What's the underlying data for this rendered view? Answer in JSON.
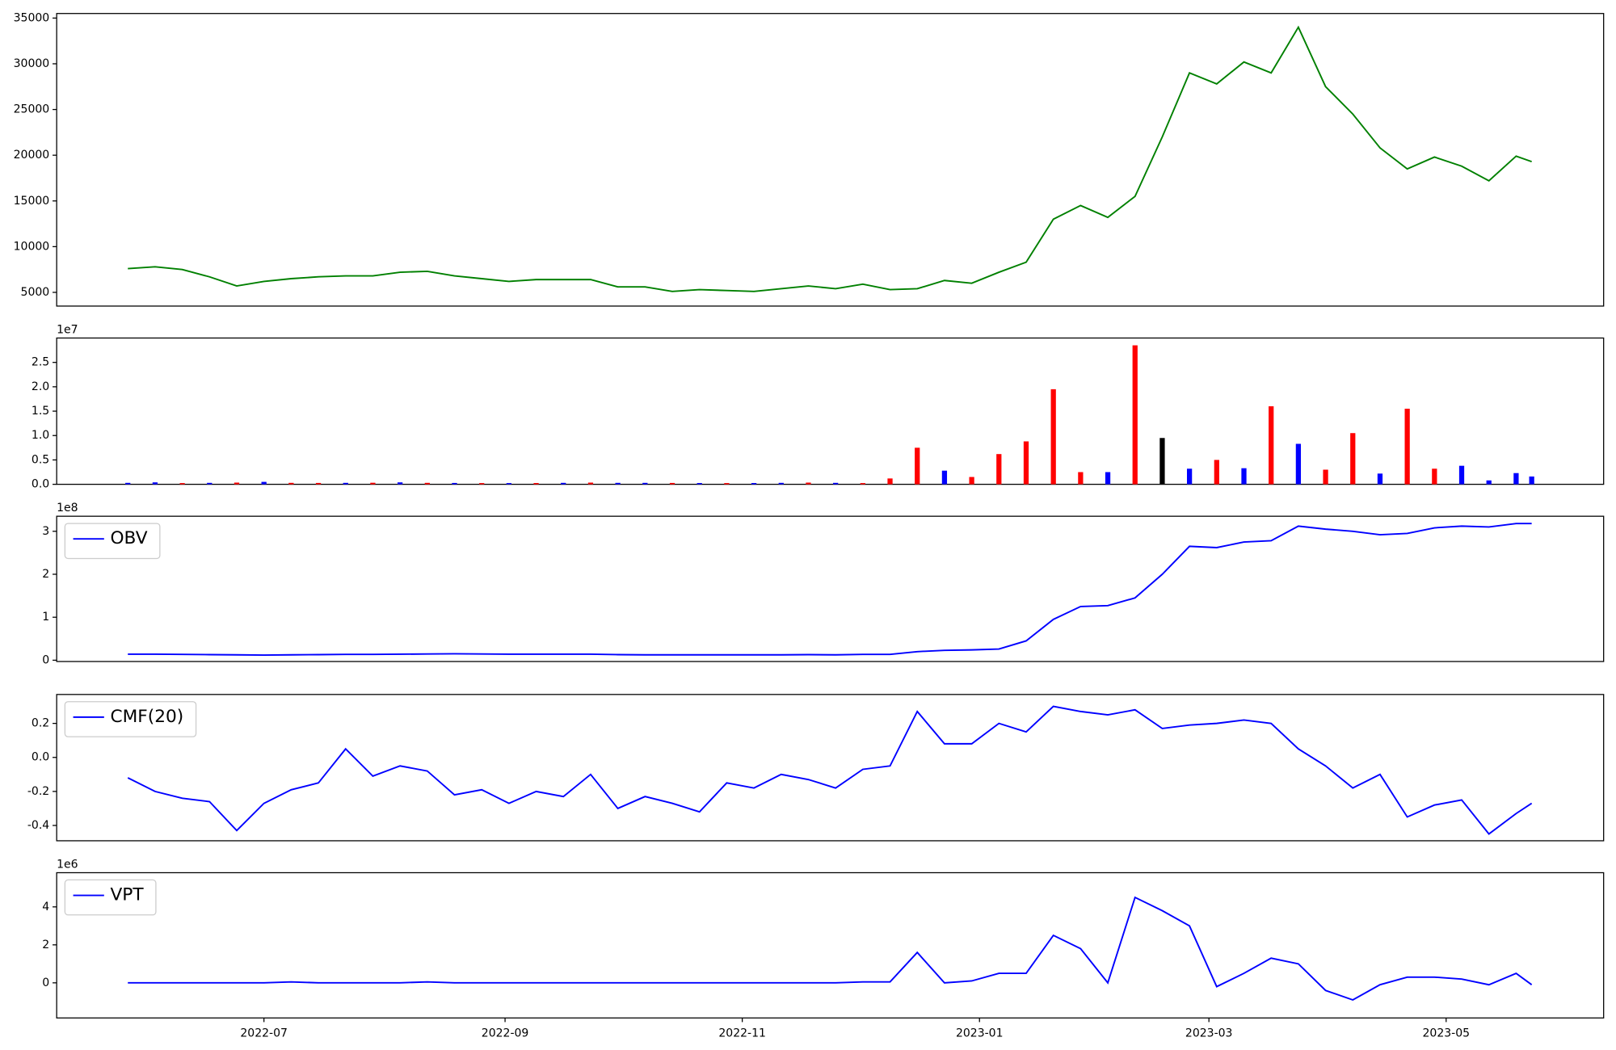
{
  "chart_data": [
    {
      "type": "line",
      "x": [
        19139,
        19146,
        19153,
        19160,
        19167,
        19174,
        19181,
        19188,
        19195,
        19202,
        19209,
        19216,
        19223,
        19230,
        19237,
        19244,
        19251,
        19258,
        19265,
        19272,
        19279,
        19286,
        19293,
        19300,
        19307,
        19314,
        19321,
        19328,
        19335,
        19342,
        19349,
        19356,
        19363,
        19370,
        19377,
        19384,
        19391,
        19398,
        19405,
        19412,
        19419,
        19426,
        19433,
        19440,
        19447,
        19454,
        19461,
        19468,
        19475,
        19482,
        19489,
        19496,
        19500
      ],
      "series": [
        {
          "color": "#008000",
          "values": [
            7600,
            7800,
            7500,
            6700,
            5700,
            6200,
            6500,
            6700,
            6800,
            6800,
            7200,
            7300,
            6800,
            6500,
            6200,
            6400,
            6400,
            6400,
            5600,
            5600,
            5100,
            5300,
            5200,
            5100,
            5400,
            5700,
            5400,
            5900,
            5300,
            5400,
            6300,
            6000,
            7200,
            8300,
            13000,
            14500,
            13200,
            15500,
            22000,
            29000,
            27800,
            30200,
            29000,
            34000,
            27500,
            24500,
            20800,
            18500,
            19800,
            18800,
            17200,
            19900,
            19300
          ]
        }
      ],
      "xlim": [
        19120.7,
        19518.5
      ],
      "ylim": [
        3500,
        35500
      ],
      "yticks": [
        5000,
        10000,
        15000,
        20000,
        25000,
        30000,
        35000
      ]
    },
    {
      "type": "bar",
      "x": [
        19139,
        19146,
        19153,
        19160,
        19167,
        19174,
        19181,
        19188,
        19195,
        19202,
        19209,
        19216,
        19223,
        19230,
        19237,
        19244,
        19251,
        19258,
        19265,
        19272,
        19279,
        19286,
        19293,
        19300,
        19307,
        19314,
        19321,
        19328,
        19335,
        19342,
        19349,
        19356,
        19363,
        19370,
        19377,
        19384,
        19391,
        19398,
        19405,
        19412,
        19419,
        19426,
        19433,
        19440,
        19447,
        19454,
        19461,
        19468,
        19475,
        19482,
        19489,
        19496,
        19500
      ],
      "values": [
        300000,
        400000,
        250000,
        300000,
        350000,
        500000,
        300000,
        280000,
        300000,
        320000,
        400000,
        300000,
        280000,
        250000,
        250000,
        260000,
        300000,
        350000,
        300000,
        300000,
        280000,
        260000,
        250000,
        260000,
        300000,
        350000,
        300000,
        250000,
        1200000,
        7500000,
        2800000,
        1500000,
        6200000,
        8800000,
        19500000,
        2500000,
        2500000,
        28500000,
        9500000,
        3200000,
        5000000,
        3300000,
        16000000,
        8300000,
        3000000,
        10500000,
        2200000,
        15500000,
        3200000,
        3800000,
        800000,
        2300000,
        1600000
      ],
      "colors": [
        "blue",
        "blue",
        "red",
        "blue",
        "red",
        "blue",
        "red",
        "red",
        "blue",
        "red",
        "blue",
        "red",
        "blue",
        "red",
        "blue",
        "red",
        "blue",
        "red",
        "blue",
        "blue",
        "red",
        "blue",
        "red",
        "blue",
        "blue",
        "red",
        "blue",
        "red",
        "red",
        "red",
        "blue",
        "red",
        "red",
        "red",
        "red",
        "red",
        "blue",
        "red",
        "black",
        "blue",
        "red",
        "blue",
        "red",
        "blue",
        "red",
        "red",
        "blue",
        "red",
        "red",
        "blue",
        "blue",
        "blue",
        "blue"
      ],
      "xlim": [
        19120.7,
        19518.5
      ],
      "ylim": [
        0,
        30000000
      ],
      "yticks": [
        {
          "value": 0,
          "label": "0.0"
        },
        {
          "value": 5000000,
          "label": "0.5"
        },
        {
          "value": 10000000,
          "label": "1.0"
        },
        {
          "value": 15000000,
          "label": "1.5"
        },
        {
          "value": 20000000,
          "label": "2.0"
        },
        {
          "value": 25000000,
          "label": "2.5"
        }
      ],
      "y_offset_label": "1e7"
    },
    {
      "type": "line",
      "x": [
        19139,
        19146,
        19153,
        19160,
        19167,
        19174,
        19181,
        19188,
        19195,
        19202,
        19209,
        19216,
        19223,
        19230,
        19237,
        19244,
        19251,
        19258,
        19265,
        19272,
        19279,
        19286,
        19293,
        19300,
        19307,
        19314,
        19321,
        19328,
        19335,
        19342,
        19349,
        19356,
        19363,
        19370,
        19377,
        19384,
        19391,
        19398,
        19405,
        19412,
        19419,
        19426,
        19433,
        19440,
        19447,
        19454,
        19461,
        19468,
        19475,
        19482,
        19489,
        19496,
        19500
      ],
      "series": [
        {
          "name": "OBV",
          "color": "#0000ff",
          "values": [
            14000000,
            14000000,
            13500000,
            13000000,
            12500000,
            12000000,
            12500000,
            13000000,
            13500000,
            13500000,
            14000000,
            14500000,
            15000000,
            14500000,
            14000000,
            14000000,
            14000000,
            14000000,
            13000000,
            12500000,
            12500000,
            12500000,
            12500000,
            12500000,
            12500000,
            13000000,
            12500000,
            13500000,
            13500000,
            20000000,
            23000000,
            24000000,
            26000000,
            45000000,
            95000000,
            125000000,
            127000000,
            145000000,
            200000000,
            265000000,
            262000000,
            275000000,
            278000000,
            312000000,
            305000000,
            300000000,
            292000000,
            295000000,
            308000000,
            312000000,
            310000000,
            318000000,
            318000000
          ]
        }
      ],
      "xlim": [
        19120.7,
        19518.5
      ],
      "ylim": [
        -3000000,
        335000000
      ],
      "yticks": [
        {
          "value": 0,
          "label": "0"
        },
        {
          "value": 100000000,
          "label": "1"
        },
        {
          "value": 200000000,
          "label": "2"
        },
        {
          "value": 300000000,
          "label": "3"
        }
      ],
      "y_offset_label": "1e8",
      "legend": "upper left"
    },
    {
      "type": "line",
      "x": [
        19139,
        19146,
        19153,
        19160,
        19167,
        19174,
        19181,
        19188,
        19195,
        19202,
        19209,
        19216,
        19223,
        19230,
        19237,
        19244,
        19251,
        19258,
        19265,
        19272,
        19279,
        19286,
        19293,
        19300,
        19307,
        19314,
        19321,
        19328,
        19335,
        19342,
        19349,
        19356,
        19363,
        19370,
        19377,
        19384,
        19391,
        19398,
        19405,
        19412,
        19419,
        19426,
        19433,
        19440,
        19447,
        19454,
        19461,
        19468,
        19475,
        19482,
        19489,
        19496,
        19500
      ],
      "series": [
        {
          "name": "CMF(20)",
          "color": "#0000ff",
          "values": [
            -0.12,
            -0.2,
            -0.24,
            -0.26,
            -0.43,
            -0.27,
            -0.19,
            -0.15,
            0.05,
            -0.11,
            -0.05,
            -0.08,
            -0.22,
            -0.19,
            -0.27,
            -0.2,
            -0.23,
            -0.1,
            -0.3,
            -0.23,
            -0.27,
            -0.32,
            -0.15,
            -0.18,
            -0.1,
            -0.13,
            -0.18,
            -0.07,
            -0.05,
            0.27,
            0.08,
            0.08,
            0.2,
            0.15,
            0.3,
            0.27,
            0.25,
            0.28,
            0.17,
            0.19,
            0.2,
            0.22,
            0.2,
            0.05,
            -0.05,
            -0.18,
            -0.1,
            -0.35,
            -0.28,
            -0.25,
            -0.45,
            -0.33,
            -0.27
          ]
        }
      ],
      "xlim": [
        19120.7,
        19518.5
      ],
      "ylim": [
        -0.49,
        0.37
      ],
      "yticks": [
        -0.4,
        -0.2,
        {
          "value": 0,
          "label": "0.0"
        },
        0.2
      ],
      "legend": "upper left"
    },
    {
      "type": "line",
      "x": [
        19139,
        19146,
        19153,
        19160,
        19167,
        19174,
        19181,
        19188,
        19195,
        19202,
        19209,
        19216,
        19223,
        19230,
        19237,
        19244,
        19251,
        19258,
        19265,
        19272,
        19279,
        19286,
        19293,
        19300,
        19307,
        19314,
        19321,
        19328,
        19335,
        19342,
        19349,
        19356,
        19363,
        19370,
        19377,
        19384,
        19391,
        19398,
        19405,
        19412,
        19419,
        19426,
        19433,
        19440,
        19447,
        19454,
        19461,
        19468,
        19475,
        19482,
        19489,
        19496,
        19500
      ],
      "series": [
        {
          "name": "VPT",
          "color": "#0000ff",
          "values": [
            0,
            0,
            0,
            0,
            0,
            0,
            50000,
            0,
            0,
            0,
            0,
            50000,
            0,
            0,
            0,
            0,
            0,
            0,
            0,
            0,
            0,
            0,
            0,
            0,
            0,
            0,
            0,
            50000,
            50000,
            1600000,
            0,
            100000,
            500000,
            500000,
            2500000,
            1800000,
            0,
            4500000,
            3800000,
            3000000,
            -200000,
            500000,
            1300000,
            1000000,
            -400000,
            -900000,
            -100000,
            300000,
            300000,
            200000,
            -100000,
            500000,
            -100000
          ]
        }
      ],
      "xlim": [
        19120.7,
        19518.5
      ],
      "ylim": [
        -1850000,
        5800000
      ],
      "yticks": [
        {
          "value": 0,
          "label": "0"
        },
        {
          "value": 2000000,
          "label": "2"
        },
        {
          "value": 4000000,
          "label": "4"
        }
      ],
      "xticks": [
        {
          "value": 19174,
          "label": "2022-07"
        },
        {
          "value": 19236,
          "label": "2022-09"
        },
        {
          "value": 19297,
          "label": "2022-11"
        },
        {
          "value": 19358,
          "label": "2023-01"
        },
        {
          "value": 19417,
          "label": "2023-03"
        },
        {
          "value": 19478,
          "label": "2023-05"
        }
      ],
      "y_offset_label": "1e6",
      "legend": "upper left"
    }
  ]
}
